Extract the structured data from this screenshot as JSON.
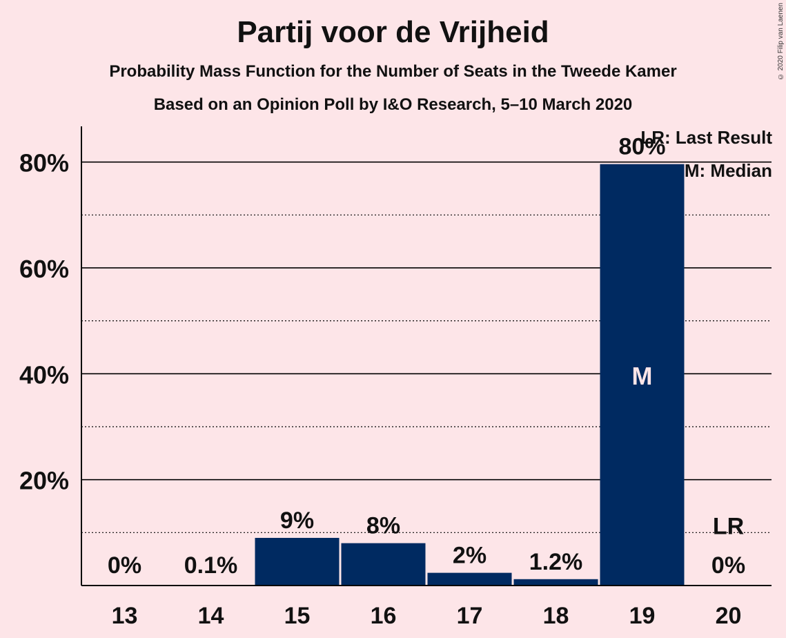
{
  "title": "Partij voor de Vrijheid",
  "subtitle1": "Probability Mass Function for the Number of Seats in the Tweede Kamer",
  "subtitle2": "Based on an Opinion Poll by I&O Research, 5–10 March 2020",
  "copyright": "© 2020 Filip van Laenen",
  "legend": {
    "last_result": "LR: Last Result",
    "median": "M: Median"
  },
  "colors": {
    "bar": "#002a61",
    "background": "#fde5e8"
  },
  "chart_data": {
    "type": "bar",
    "categories": [
      "13",
      "14",
      "15",
      "16",
      "17",
      "18",
      "19",
      "20"
    ],
    "values": [
      0,
      0.1,
      9,
      8,
      2.4,
      1.2,
      79.6,
      0
    ],
    "data_labels": [
      "0%",
      "0.1%",
      "9%",
      "8%",
      "2%",
      "1.2%",
      "80%",
      "0%"
    ],
    "y_ticks": [
      20,
      40,
      60,
      80
    ],
    "y_tick_labels": [
      "20%",
      "40%",
      "60%",
      "80%"
    ],
    "ylim": [
      0,
      87
    ],
    "median_category": "19",
    "median_marker": "M",
    "last_result_category": "20",
    "last_result_marker": "LR",
    "grid": true
  }
}
